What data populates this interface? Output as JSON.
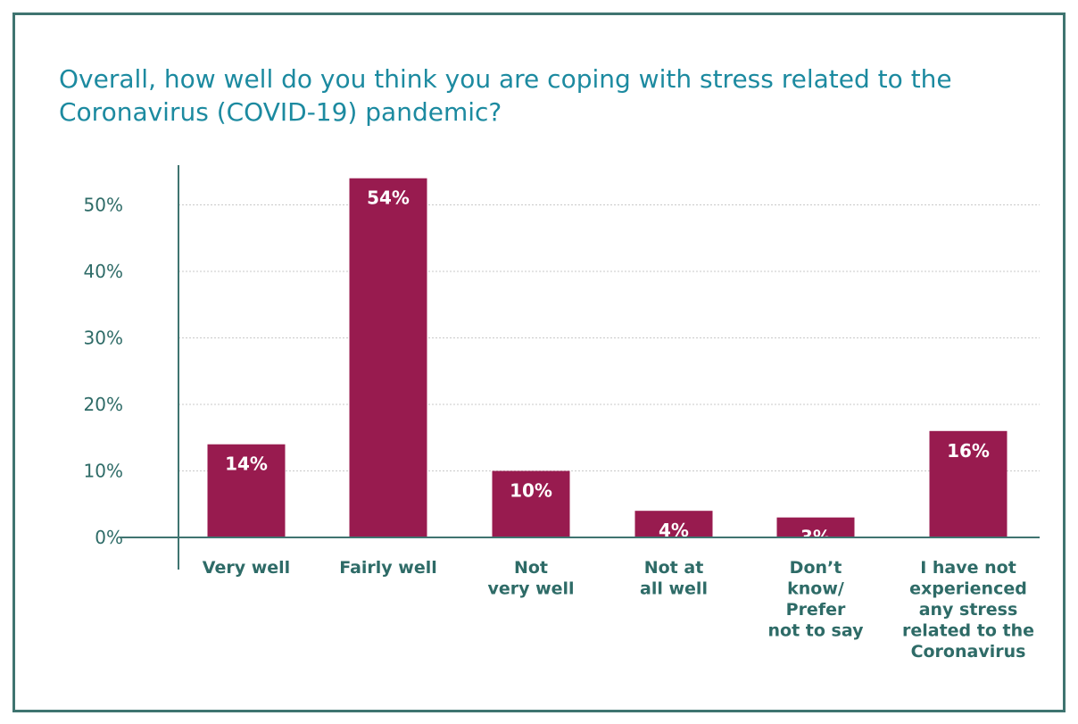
{
  "chart_data": {
    "type": "bar",
    "title": "Overall, how well do you think you are coping with stress related to the Coronavirus (COVID-19) pandemic?",
    "xlabel": "",
    "ylabel": "",
    "categories": [
      "Very well",
      "Fairly well",
      "Not very well",
      "Not at all well",
      "Don’t know/ Prefer not to say",
      "I have not experienced any stress related to the Coronavirus"
    ],
    "category_label_lines": [
      [
        "Very well"
      ],
      [
        "Fairly well"
      ],
      [
        "Not",
        "very well"
      ],
      [
        "Not at",
        "all well"
      ],
      [
        "Don’t",
        "know/",
        "Prefer",
        "not to say"
      ],
      [
        "I have not",
        "experienced",
        "any stress",
        "related to the",
        "Coronavirus"
      ]
    ],
    "values": [
      14,
      54,
      10,
      4,
      3,
      16
    ],
    "data_labels": [
      "14%",
      "54%",
      "10%",
      "4%",
      "3%",
      "16%"
    ],
    "ylim": [
      0,
      55
    ],
    "yticks": [
      0,
      10,
      20,
      30,
      40,
      50
    ],
    "ytick_labels": [
      "0%",
      "10%",
      "20%",
      "30%",
      "40%",
      "50%"
    ],
    "grid": true,
    "legend": "none",
    "colors": {
      "bar": "#981b4f",
      "title": "#1c8aa0",
      "axis": "#3f7470",
      "text": "#2e6b67",
      "grid": "#c9c9c9"
    }
  }
}
